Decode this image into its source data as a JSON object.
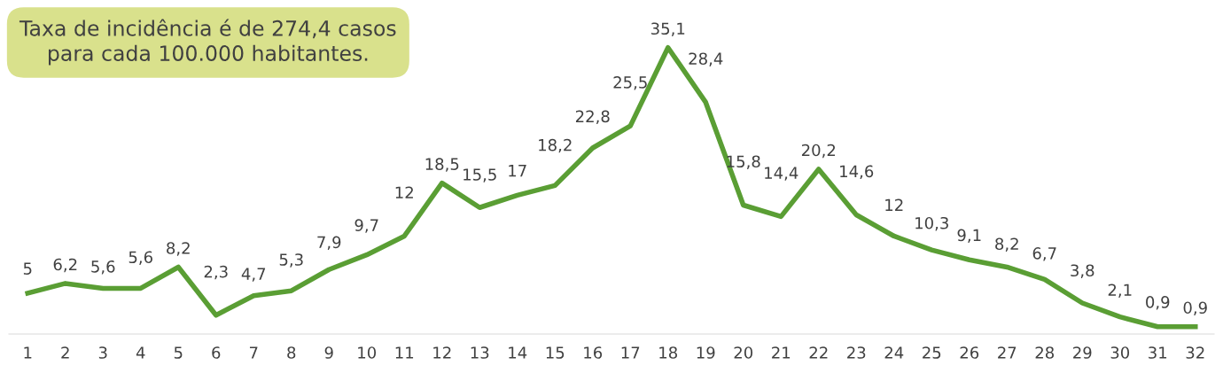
{
  "chart_data": {
    "type": "line",
    "categories": [
      "1",
      "2",
      "3",
      "4",
      "5",
      "6",
      "7",
      "8",
      "9",
      "10",
      "11",
      "12",
      "13",
      "14",
      "15",
      "16",
      "17",
      "18",
      "19",
      "20",
      "21",
      "22",
      "23",
      "24",
      "25",
      "26",
      "27",
      "28",
      "29",
      "30",
      "31",
      "32"
    ],
    "series": [
      {
        "color": "#5a9e34",
        "values": [
          5,
          6.2,
          5.6,
          5.6,
          8.2,
          2.3,
          4.7,
          5.3,
          7.9,
          9.7,
          12,
          18.5,
          15.5,
          17,
          18.2,
          22.8,
          25.5,
          35.1,
          28.4,
          15.8,
          14.4,
          20.2,
          14.6,
          12,
          10.3,
          9.1,
          8.2,
          6.7,
          3.8,
          2.1,
          0.9,
          0.9
        ],
        "value_labels": [
          "5",
          "6,2",
          "5,6",
          "5,6",
          "8,2",
          "2,3",
          "4,7",
          "5,3",
          "7,9",
          "9,7",
          "12",
          "18,5",
          "15,5",
          "17",
          "18,2",
          "22,8",
          "25,5",
          "35,1",
          "28,4",
          "15,8",
          "14,4",
          "20,2",
          "14,6",
          "12",
          "10,3",
          "9,1",
          "8,2",
          "6,7",
          "3,8",
          "2,1",
          "0,9",
          "0,9"
        ]
      }
    ],
    "grid": false,
    "legend": false,
    "marker": "none",
    "line_style": "solid",
    "annotations": [
      "Taxa de incidência é de 274,4 casos\npara cada 100.000 habitantes."
    ]
  }
}
